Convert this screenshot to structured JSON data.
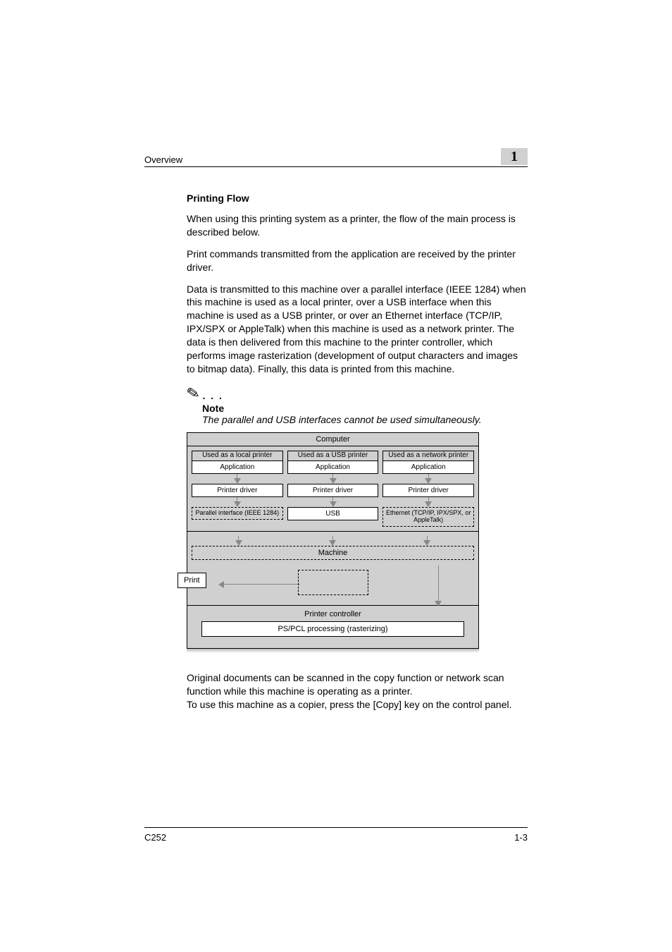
{
  "header": {
    "section": "Overview",
    "chapter_number": "1"
  },
  "body": {
    "title": "Printing Flow",
    "paragraphs": [
      "When using this printing system as a printer, the flow of the main process is described below.",
      "Print commands transmitted from the application are received by the printer driver.",
      "Data is transmitted to this machine over a parallel interface (IEEE 1284) when this machine is used as a local printer, over a USB interface when this machine is used as a USB printer, or over an Ethernet interface (TCP/IP, IPX/SPX or AppleTalk) when this machine is used as a network printer. The data is then delivered from this machine to the printer controller, which performs image rasterization (development of output characters and images to bitmap data). Finally, this data is printed from this machine."
    ],
    "note": {
      "label": "Note",
      "text": "The parallel and USB interfaces cannot be used simultaneously."
    },
    "closing": [
      "Original documents can be scanned in the copy function or network scan function while this machine is operating as a printer.",
      "To use this machine as a copier, press the [Copy] key on the control panel."
    ]
  },
  "diagram": {
    "type": "flowchart",
    "background_color": "#d0d0d0",
    "box_bg": "#ffffff",
    "border_color": "#000000",
    "arrow_color": "#888888",
    "computer_label": "Computer",
    "columns": [
      {
        "title": "Used as a local printer",
        "app": "Application",
        "driver": "Printer driver",
        "iface": "Parallel interface (IEEE 1284)"
      },
      {
        "title": "Used as a USB printer",
        "app": "Application",
        "driver": "Printer driver",
        "iface": "USB"
      },
      {
        "title": "Used as a network printer",
        "app": "Application",
        "driver": "Printer driver",
        "iface": "Ethernet (TCP/IP, IPX/SPX, or AppleTalk)"
      }
    ],
    "machine_label": "Machine",
    "print_label": "Print",
    "controller_label": "Printer controller",
    "processing_label": "PS/PCL processing (rasterizing)"
  },
  "footer": {
    "product": "C252",
    "page": "1-3"
  }
}
